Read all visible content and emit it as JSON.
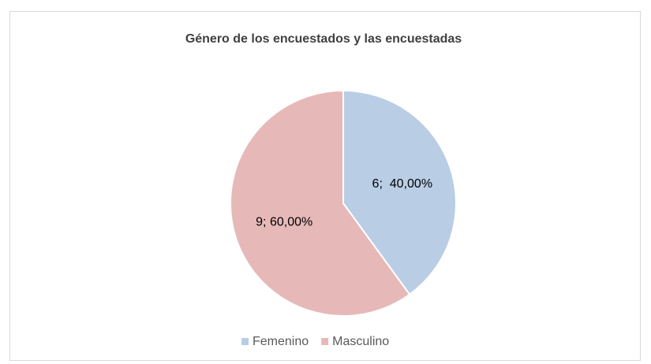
{
  "chart_data": {
    "type": "pie",
    "title": "Género de los encuestados y las encuestadas",
    "categories": [
      "Femenino",
      "Masculino"
    ],
    "values": [
      6,
      9
    ],
    "value_labels": [
      "6;  40,00%",
      "9; 60,00%"
    ],
    "colors": [
      "#b9cde5",
      "#e6b9b8"
    ],
    "legend": "bottom"
  }
}
